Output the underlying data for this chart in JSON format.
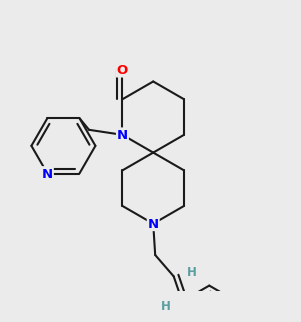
{
  "bg_color": "#ebebeb",
  "N_color": "#0000ff",
  "O_color": "#ff0000",
  "H_color": "#5a9ea0",
  "bond_color": "#1a1a1a",
  "bond_lw": 1.5,
  "inner_lw": 1.5,
  "font_size": 9.5,
  "font_size_H": 8.5,
  "bl": 0.36,
  "spiro_x": 1.6,
  "spiro_y": 1.55,
  "xlim": [
    0.15,
    3.0
  ],
  "ylim": [
    0.15,
    3.0
  ]
}
